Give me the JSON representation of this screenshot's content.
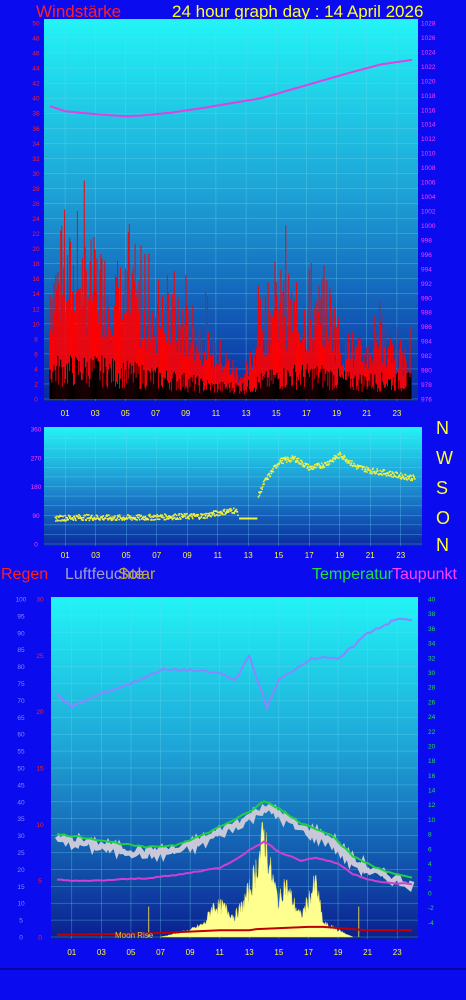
{
  "header": {
    "left_title": "Windstärke",
    "title": "24 hour graph day : 14 April 2026"
  },
  "bottom_legend": {
    "rain": "Regen",
    "humidity": "Luftfeuchte",
    "solar": "Solar",
    "temperature": "Temperatur",
    "dewpoint": "Taupunkt"
  },
  "compass": [
    "N",
    "W",
    "S",
    "O",
    "N"
  ],
  "moon_label": "Moon Rise",
  "colors": {
    "background": "#0b0bf0",
    "wind_gust": "#ff0000",
    "wind_avg": "#000000",
    "pressure": "#e040e0",
    "direction": "#f0f040",
    "humidity": "#8080ff",
    "temperature": "#20c040",
    "dewpoint": "#d040d0",
    "solar": "#ffff90",
    "rain": "#c00000"
  },
  "chart_data": [
    {
      "type": "bar",
      "name": "wind-pressure",
      "x_ticks": [
        "01",
        "03",
        "05",
        "07",
        "09",
        "11",
        "13",
        "15",
        "17",
        "19",
        "21",
        "23"
      ],
      "y_left_range": [
        0,
        50
      ],
      "y_left_ticks": [
        0,
        2,
        4,
        6,
        8,
        10,
        12,
        14,
        16,
        18,
        20,
        22,
        24,
        26,
        28,
        30,
        32,
        34,
        36,
        38,
        40,
        42,
        44,
        46,
        48,
        50
      ],
      "y_right_range": [
        976,
        1028
      ],
      "y_right_ticks": [
        976,
        978,
        980,
        982,
        984,
        986,
        988,
        990,
        992,
        994,
        996,
        998,
        1000,
        1002,
        1004,
        1006,
        1008,
        1010,
        1012,
        1014,
        1016,
        1018,
        1020,
        1022,
        1024,
        1026,
        1028
      ],
      "gust_profile": [
        [
          0,
          17
        ],
        [
          1.5,
          19
        ],
        [
          3,
          18
        ],
        [
          4.5,
          16
        ],
        [
          6,
          14
        ],
        [
          8,
          12
        ],
        [
          10,
          10
        ],
        [
          12,
          5
        ],
        [
          13,
          3
        ],
        [
          14,
          12
        ],
        [
          15.5,
          15
        ],
        [
          16.5,
          12
        ],
        [
          18.5,
          14
        ],
        [
          19.5,
          7
        ],
        [
          21,
          7
        ],
        [
          22,
          9
        ],
        [
          23.5,
          6
        ]
      ],
      "avg_profile": [
        [
          0,
          5
        ],
        [
          3,
          5
        ],
        [
          6,
          4
        ],
        [
          9,
          3
        ],
        [
          11,
          2
        ],
        [
          13,
          2
        ],
        [
          14,
          3
        ],
        [
          16,
          4
        ],
        [
          18,
          4
        ],
        [
          20,
          3
        ],
        [
          22,
          3
        ],
        [
          24,
          3
        ]
      ],
      "pressure": [
        [
          0,
          1016.5
        ],
        [
          1,
          1015.8
        ],
        [
          3,
          1015.4
        ],
        [
          5,
          1015.1
        ],
        [
          6,
          1015.2
        ],
        [
          8,
          1015.6
        ],
        [
          10,
          1016.2
        ],
        [
          12,
          1016.9
        ],
        [
          14,
          1017.6
        ],
        [
          16,
          1018.8
        ],
        [
          18,
          1020.0
        ],
        [
          20,
          1021.2
        ],
        [
          22,
          1022.3
        ],
        [
          24,
          1022.9
        ]
      ]
    },
    {
      "type": "scatter",
      "name": "wind-direction",
      "x_ticks": [
        "01",
        "03",
        "05",
        "07",
        "09",
        "11",
        "13",
        "15",
        "17",
        "19",
        "21",
        "23"
      ],
      "y_range": [
        0,
        360
      ],
      "y_ticks": [
        0,
        90,
        180,
        270,
        360
      ],
      "direction": [
        [
          0,
          82
        ],
        [
          2,
          86
        ],
        [
          4,
          84
        ],
        [
          6,
          85
        ],
        [
          8,
          88
        ],
        [
          10,
          90
        ],
        [
          11,
          100
        ],
        [
          12,
          108
        ],
        [
          13,
          82
        ],
        [
          14,
          195
        ],
        [
          15,
          262
        ],
        [
          16,
          270
        ],
        [
          17,
          240
        ],
        [
          18,
          252
        ],
        [
          19,
          282
        ],
        [
          20,
          245
        ],
        [
          21,
          232
        ],
        [
          22,
          225
        ],
        [
          23,
          215
        ],
        [
          24,
          208
        ]
      ]
    },
    {
      "type": "line",
      "name": "rain-humidity-temperature",
      "x_ticks": [
        "01",
        "03",
        "05",
        "07",
        "09",
        "11",
        "13",
        "15",
        "17",
        "19",
        "21",
        "23"
      ],
      "y_humidity_range": [
        0,
        100
      ],
      "y_humidity_ticks": [
        0,
        5,
        10,
        15,
        20,
        25,
        30,
        35,
        40,
        45,
        50,
        55,
        60,
        65,
        70,
        75,
        80,
        85,
        90,
        95,
        100
      ],
      "y_rain_range": [
        0,
        30
      ],
      "y_rain_ticks": [
        0,
        5,
        10,
        15,
        20,
        25,
        30
      ],
      "y_temp_range": [
        -6,
        40
      ],
      "y_temp_ticks": [
        -4,
        -2,
        0,
        2,
        4,
        6,
        8,
        10,
        12,
        14,
        16,
        18,
        20,
        22,
        24,
        26,
        28,
        30,
        32,
        34,
        36,
        38,
        40
      ],
      "humidity": [
        [
          0,
          72
        ],
        [
          1,
          68
        ],
        [
          3,
          72
        ],
        [
          5,
          75
        ],
        [
          7,
          79
        ],
        [
          9,
          79
        ],
        [
          11,
          78
        ],
        [
          12,
          76
        ],
        [
          13,
          83
        ],
        [
          13.8,
          73
        ],
        [
          14.2,
          68
        ],
        [
          15,
          76
        ],
        [
          17,
          82
        ],
        [
          18,
          83
        ],
        [
          19,
          82
        ],
        [
          20,
          86
        ],
        [
          21,
          90
        ],
        [
          23,
          94
        ],
        [
          24,
          94
        ]
      ],
      "temperature": [
        [
          0,
          8
        ],
        [
          2,
          7.5
        ],
        [
          4,
          6.8
        ],
        [
          6,
          6.2
        ],
        [
          8,
          6.5
        ],
        [
          10,
          8
        ],
        [
          11.5,
          9.5
        ],
        [
          13,
          11
        ],
        [
          14,
          12.5
        ],
        [
          15,
          11.5
        ],
        [
          16.5,
          9.5
        ],
        [
          18.5,
          8
        ],
        [
          20,
          5
        ],
        [
          21.5,
          3.5
        ],
        [
          23,
          2.5
        ],
        [
          24,
          2
        ]
      ],
      "dewpoint": [
        [
          0,
          1.8
        ],
        [
          2,
          1.6
        ],
        [
          4,
          1.8
        ],
        [
          6,
          2
        ],
        [
          8,
          2.4
        ],
        [
          10,
          3.1
        ],
        [
          11,
          3.4
        ],
        [
          12,
          4.5
        ],
        [
          13,
          5.8
        ],
        [
          14,
          7
        ],
        [
          15,
          5.6
        ],
        [
          16.5,
          4.4
        ],
        [
          17.5,
          4.8
        ],
        [
          19,
          4
        ],
        [
          20,
          2.6
        ],
        [
          21,
          1.9
        ],
        [
          22,
          1.4
        ],
        [
          23,
          1.3
        ],
        [
          24,
          1.2
        ]
      ],
      "solar": [
        [
          7,
          0
        ],
        [
          8,
          1
        ],
        [
          9,
          2
        ],
        [
          10,
          4
        ],
        [
          10.5,
          9
        ],
        [
          11.2,
          9
        ],
        [
          12,
          6
        ],
        [
          12.5,
          9
        ],
        [
          13.2,
          16
        ],
        [
          13.7,
          24
        ],
        [
          14,
          31
        ],
        [
          14.4,
          20
        ],
        [
          15,
          10
        ],
        [
          15.4,
          16
        ],
        [
          16,
          10
        ],
        [
          16.5,
          6
        ],
        [
          17,
          11
        ],
        [
          17.5,
          16
        ],
        [
          18,
          4
        ],
        [
          19,
          2
        ],
        [
          20,
          0
        ]
      ],
      "rain": [
        [
          0,
          0.2
        ],
        [
          6,
          0.3
        ],
        [
          11,
          0.6
        ],
        [
          13,
          0.6
        ],
        [
          13.5,
          0.7
        ],
        [
          17,
          0.9
        ],
        [
          18,
          0.9
        ],
        [
          19,
          0.8
        ],
        [
          20,
          0.7
        ],
        [
          21,
          0.6
        ],
        [
          24,
          0.6
        ]
      ]
    }
  ]
}
